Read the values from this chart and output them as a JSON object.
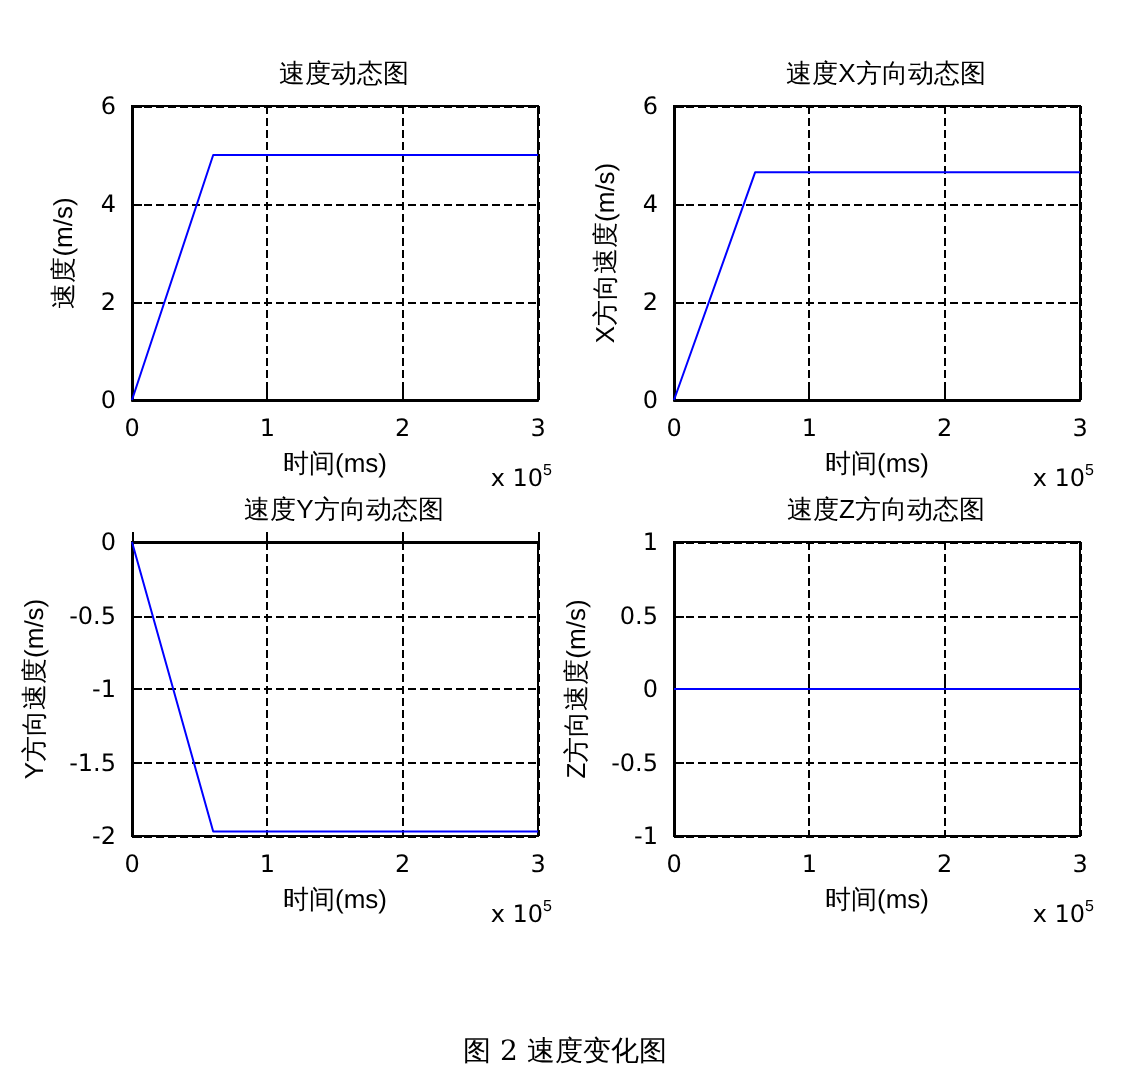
{
  "chart_data": [
    {
      "type": "line",
      "title": "速度动态图",
      "xlabel": "时间(ms)",
      "ylabel": "速度(m/s)",
      "x": [
        0,
        0.6,
        3
      ],
      "series": [
        {
          "color": "#0000ff",
          "values": [
            0,
            5,
            5
          ]
        }
      ],
      "xlim": [
        0,
        3
      ],
      "xticks": [
        0,
        1,
        2,
        3
      ],
      "ylim": [
        0,
        6
      ],
      "yticks": [
        0,
        2,
        4,
        6
      ],
      "grid": true,
      "marker": "none",
      "annotations": [
        "x 10$^{5}$"
      ]
    },
    {
      "type": "line",
      "title": "速度X方向动态图",
      "xlabel": "时间(ms)",
      "ylabel": "X方向速度(m/s)",
      "x": [
        0,
        0.6,
        3
      ],
      "series": [
        {
          "color": "#0000ff",
          "values": [
            0,
            4.65,
            4.65
          ]
        }
      ],
      "xlim": [
        0,
        3
      ],
      "xticks": [
        0,
        1,
        2,
        3
      ],
      "ylim": [
        0,
        6
      ],
      "yticks": [
        0,
        2,
        4,
        6
      ],
      "grid": true,
      "marker": "none",
      "annotations": [
        "x 10$^{5}$"
      ]
    },
    {
      "type": "line",
      "title": "速度Y方向动态图",
      "xlabel": "时间(ms)",
      "ylabel": "Y方向速度(m/s)",
      "x": [
        0,
        0.6,
        3
      ],
      "series": [
        {
          "color": "#0000ff",
          "values": [
            0,
            -1.97,
            -1.97
          ]
        }
      ],
      "xlim": [
        0,
        3
      ],
      "xticks": [
        0,
        1,
        2,
        3
      ],
      "ylim": [
        -2,
        0
      ],
      "yticks": [
        -2,
        -1.5,
        -1,
        -0.5,
        0
      ],
      "grid": true,
      "marker": "none",
      "annotations": [
        "x 10$^{5}$"
      ]
    },
    {
      "type": "line",
      "title": "速度Z方向动态图",
      "xlabel": "时间(ms)",
      "ylabel": "Z方向速度(m/s)",
      "x": [
        0,
        3
      ],
      "series": [
        {
          "color": "#0000ff",
          "values": [
            0,
            0
          ]
        }
      ],
      "xlim": [
        0,
        3
      ],
      "xticks": [
        0,
        1,
        2,
        3
      ],
      "ylim": [
        -1,
        1
      ],
      "yticks": [
        -1,
        -0.5,
        0,
        0.5,
        1
      ],
      "grid": true,
      "marker": "none",
      "annotations": [
        "x 10$^{5}$",
        "图 2 速度变化图"
      ]
    }
  ]
}
